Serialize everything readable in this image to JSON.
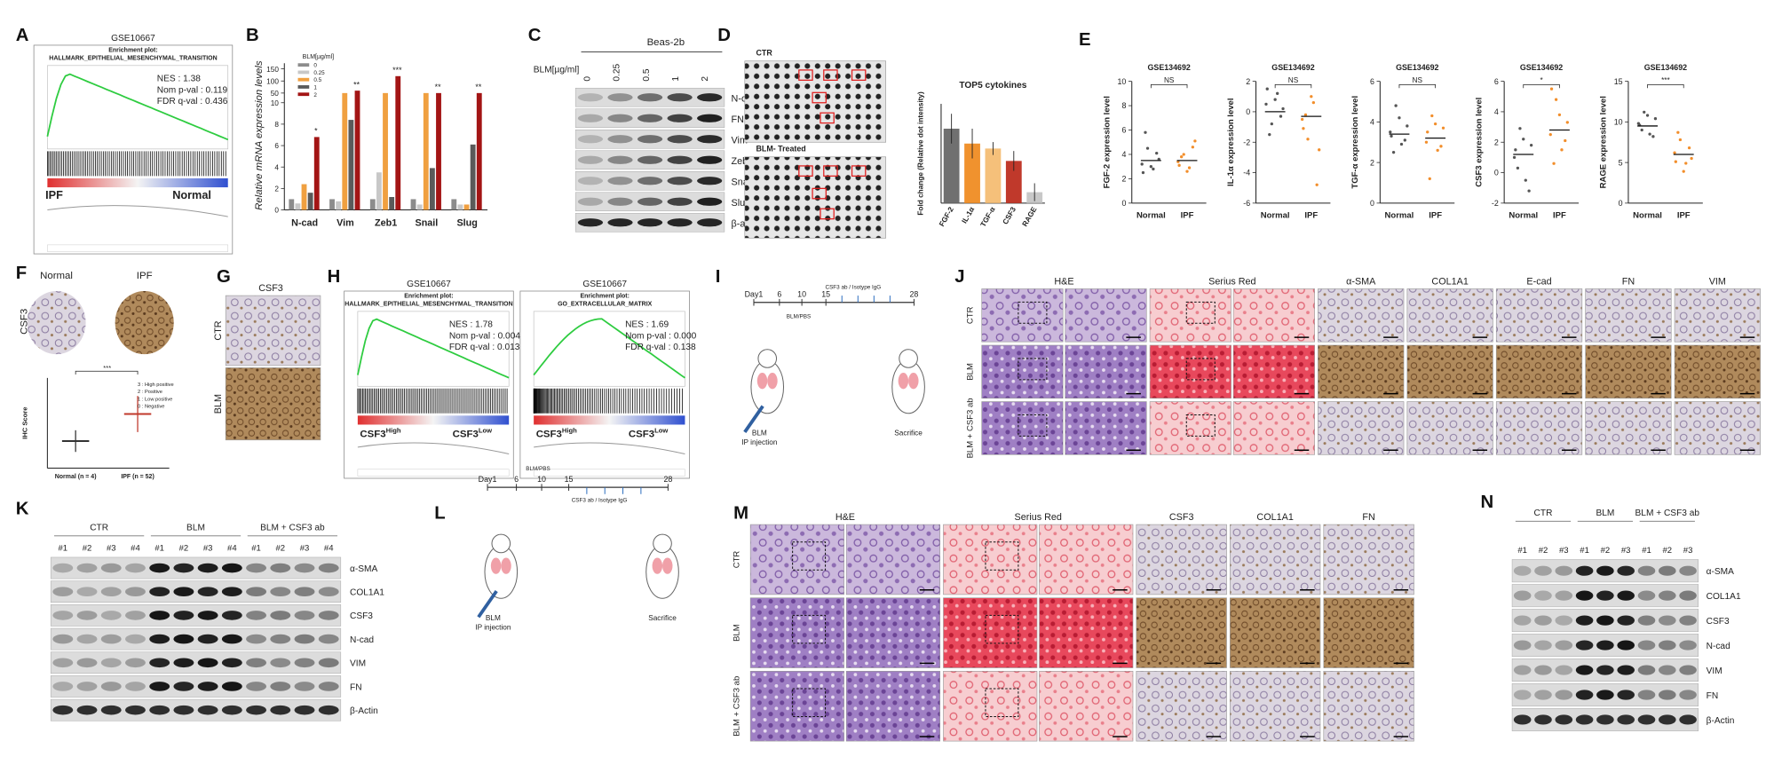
{
  "A": {
    "letter": "A",
    "dataset": "GSE10667",
    "plot_label": "Enrichment plot:",
    "gene_set": "HALLMARK_EPITHELIAL_MESENCHYMAL_TRANSITION",
    "stats": [
      "NES : 1.38",
      "Nom p-val : 0.119",
      "FDR q-val : 0.436"
    ],
    "left_group": "IPF",
    "right_group": "Normal"
  },
  "B": {
    "letter": "B",
    "y_label": "Relative mRNA expression levels",
    "legend_title": "BLM[µg/ml]",
    "categories": [
      "N-cad",
      "Vim",
      "Zeb1",
      "Snail",
      "Slug"
    ],
    "series": [
      {
        "name": "0",
        "color": "#8c8c8c",
        "values": [
          1,
          1,
          1,
          1,
          1
        ]
      },
      {
        "name": "0.25",
        "color": "#c8c8c8",
        "values": [
          0.6,
          0.8,
          3.5,
          0.5,
          0.5
        ]
      },
      {
        "name": "0.5",
        "color": "#f0a040",
        "values": [
          2.4,
          50,
          50,
          50,
          0.5
        ]
      },
      {
        "name": "1",
        "color": "#5a5a5a",
        "values": [
          1.6,
          8.4,
          1.2,
          3.9,
          6.1
        ]
      },
      {
        "name": "2",
        "color": "#a31515",
        "values": [
          6.8,
          60,
          120,
          50,
          50
        ]
      }
    ],
    "yticks": [
      0,
      2,
      4,
      6,
      8,
      10,
      50,
      100,
      150
    ],
    "significance": [
      "*",
      "**",
      "***",
      "**",
      "**"
    ]
  },
  "C": {
    "letter": "C",
    "cell_line": "Beas-2b",
    "dose_label": "BLM[µg/ml]",
    "doses": [
      "0",
      "0.25",
      "0.5",
      "1",
      "2"
    ],
    "proteins": [
      "N-cad",
      "FN",
      "Vim",
      "Zeb1",
      "Snail",
      "Slug",
      "β-actin"
    ]
  },
  "D": {
    "letter": "D",
    "blot_labels": [
      "CTR",
      "BLM- Treated"
    ],
    "chart": {
      "title": "TOP5 cytokines",
      "y_label": "Fold change (Relative dot intensity)",
      "categories": [
        "FGF-2",
        "IL-1α",
        "TGF-α",
        "CSF3",
        "RAGE"
      ],
      "values": [
        15,
        12,
        11,
        8.5,
        2.2
      ],
      "errors": [
        3,
        3,
        1.3,
        2,
        1.8
      ],
      "colors": [
        "#707070",
        "#f0922e",
        "#f5c07a",
        "#c0392b",
        "#c8c8c8"
      ],
      "ylim": [
        0,
        20
      ]
    }
  },
  "E": {
    "letter": "E",
    "colors": [
      "#555555",
      "#f28e2b"
    ],
    "plots": [
      {
        "dataset": "GSE134692",
        "y_label": "FGF-2 expression level",
        "categories": [
          "Normal",
          "IPF"
        ],
        "significance": "NS",
        "ylim": [
          0,
          10
        ],
        "yticks": [
          0,
          2,
          4,
          6,
          8,
          10
        ],
        "means": [
          3.5,
          3.5
        ],
        "points": [
          [
            3.2,
            4.5,
            2.8,
            3.6,
            5.8,
            3.0,
            4.1,
            2.5
          ],
          [
            3.4,
            4.0,
            2.9,
            5.1,
            3.8,
            2.6,
            4.6,
            3.1
          ]
        ]
      },
      {
        "dataset": "GSE134692",
        "y_label": "IL-1α expression level",
        "categories": [
          "Normal",
          "IPF"
        ],
        "significance": "NS",
        "ylim": [
          -6,
          2
        ],
        "yticks": [
          -6,
          -4,
          -2,
          0,
          2
        ],
        "means": [
          0,
          -0.3
        ],
        "points": [
          [
            0.5,
            -0.8,
            1.2,
            0.2,
            -1.5,
            0.8,
            -0.3,
            1.5
          ],
          [
            -0.5,
            -1.8,
            0.6,
            -2.5,
            -0.2,
            1.0,
            -4.8,
            -1.1
          ]
        ]
      },
      {
        "dataset": "GSE134692",
        "y_label": "TGF-α expression level",
        "categories": [
          "Normal",
          "IPF"
        ],
        "significance": "NS",
        "ylim": [
          0,
          6
        ],
        "yticks": [
          0,
          2,
          4,
          6
        ],
        "means": [
          3.4,
          3.2
        ],
        "points": [
          [
            3.5,
            4.8,
            2.9,
            3.8,
            2.5,
            4.2,
            3.1,
            3.3
          ],
          [
            3.0,
            4.3,
            2.6,
            3.7,
            1.2,
            3.9,
            2.8,
            3.5
          ]
        ]
      },
      {
        "dataset": "GSE134692",
        "y_label": "CSF3 expression level",
        "categories": [
          "Normal",
          "IPF"
        ],
        "significance": "*",
        "ylim": [
          -2,
          6
        ],
        "yticks": [
          -2,
          0,
          2,
          4,
          6
        ],
        "means": [
          1.2,
          2.8
        ],
        "points": [
          [
            1.0,
            2.9,
            -0.5,
            1.8,
            0.3,
            2.2,
            -1.2,
            1.5
          ],
          [
            2.5,
            4.8,
            1.5,
            3.3,
            0.6,
            3.8,
            2.1,
            5.5
          ]
        ]
      },
      {
        "dataset": "GSE134692",
        "y_label": "RAGE expression level",
        "categories": [
          "Normal",
          "IPF"
        ],
        "significance": "***",
        "ylim": [
          0,
          15
        ],
        "yticks": [
          0,
          5,
          10,
          15
        ],
        "means": [
          9.5,
          6
        ],
        "points": [
          [
            9.8,
            11.2,
            8.5,
            10.4,
            9.0,
            10.8,
            8.2,
            9.6
          ],
          [
            6.2,
            7.8,
            4.9,
            5.5,
            8.7,
            3.9,
            6.8,
            5.1
          ]
        ]
      }
    ]
  },
  "F": {
    "letter": "F",
    "columns": [
      "Normal",
      "IPF"
    ],
    "row_label": "CSF3",
    "plot": {
      "y_label": "IHC Score",
      "categories": [
        "Normal (n = 4)",
        "IPF (n = 52)"
      ],
      "means": [
        0.5,
        2
      ],
      "errors": [
        0.6,
        1
      ],
      "ylim": [
        -1,
        4
      ],
      "significance": "***",
      "legend": [
        "3 : High positive",
        "2 : Positive",
        "1 : Low positive",
        "0 : Negative"
      ]
    }
  },
  "G": {
    "letter": "G",
    "title": "CSF3",
    "rows": [
      "CTR",
      "BLM"
    ]
  },
  "H": {
    "letter": "H",
    "plots": [
      {
        "dataset": "GSE10667",
        "plot_label": "Enrichment plot:",
        "gene_set": "HALLMARK_EPITHELIAL_MESENCHYMAL_TRANSITION",
        "stats": [
          "NES : 1.78",
          "Nom p-val : 0.004",
          "FDR q-val : 0.013"
        ],
        "high": "CSF3",
        "high_sup": "High",
        "low": "CSF3",
        "low_sup": "Low"
      },
      {
        "dataset": "GSE10667",
        "plot_label": "Enrichment plot:",
        "gene_set": "GO_EXTRACELLULAR_MATRIX",
        "stats": [
          "NES : 1.69",
          "Nom p-val : 0.000",
          "FDR q-val : 0.138"
        ],
        "high": "CSF3",
        "high_sup": "High",
        "low": "CSF3",
        "low_sup": "Low"
      }
    ]
  },
  "I": {
    "letter": "I",
    "days": [
      "Day1",
      "6",
      "10",
      "15",
      "28"
    ],
    "treatment": "BLM/PBS",
    "antibody": "CSF3 ab / Isotype IgG",
    "injection": [
      "BLM",
      "IP injection"
    ],
    "endpoint": "Sacrifice"
  },
  "J": {
    "letter": "J",
    "columns": [
      "H&E",
      "Serius Red",
      "α-SMA",
      "COL1A1",
      "E-cad",
      "FN",
      "VIM"
    ],
    "rows": [
      "CTR",
      "BLM",
      "BLM + CSF3 ab"
    ]
  },
  "K": {
    "letter": "K",
    "groups": [
      "CTR",
      "BLM",
      "BLM + CSF3 ab"
    ],
    "lanes": [
      "#1",
      "#2",
      "#3",
      "#4",
      "#1",
      "#2",
      "#3",
      "#4",
      "#1",
      "#2",
      "#3",
      "#4"
    ],
    "proteins": [
      "α-SMA",
      "COL1A1",
      "CSF3",
      "N-cad",
      "VIM",
      "FN",
      "β-Actin"
    ]
  },
  "L": {
    "letter": "L",
    "days": [
      "Day1",
      "6",
      "10",
      "15",
      "28"
    ],
    "treatment": "BLM/PBS",
    "antibody": "CSF3 ab / Isotype IgG",
    "injection": [
      "BLM",
      "IP injection"
    ],
    "endpoint": "Sacrifice"
  },
  "M": {
    "letter": "M",
    "columns": [
      "H&E",
      "Serius Red",
      "CSF3",
      "COL1A1",
      "FN"
    ],
    "rows": [
      "CTR",
      "BLM",
      "BLM + CSF3 ab"
    ]
  },
  "N": {
    "letter": "N",
    "groups": [
      "CTR",
      "BLM",
      "BLM + CSF3 ab"
    ],
    "lanes": [
      "#1",
      "#2",
      "#3",
      "#1",
      "#2",
      "#3",
      "#1",
      "#2",
      "#3"
    ],
    "proteins": [
      "α-SMA",
      "COL1A1",
      "CSF3",
      "N-cad",
      "VIM",
      "FN",
      "β-Actin"
    ]
  }
}
